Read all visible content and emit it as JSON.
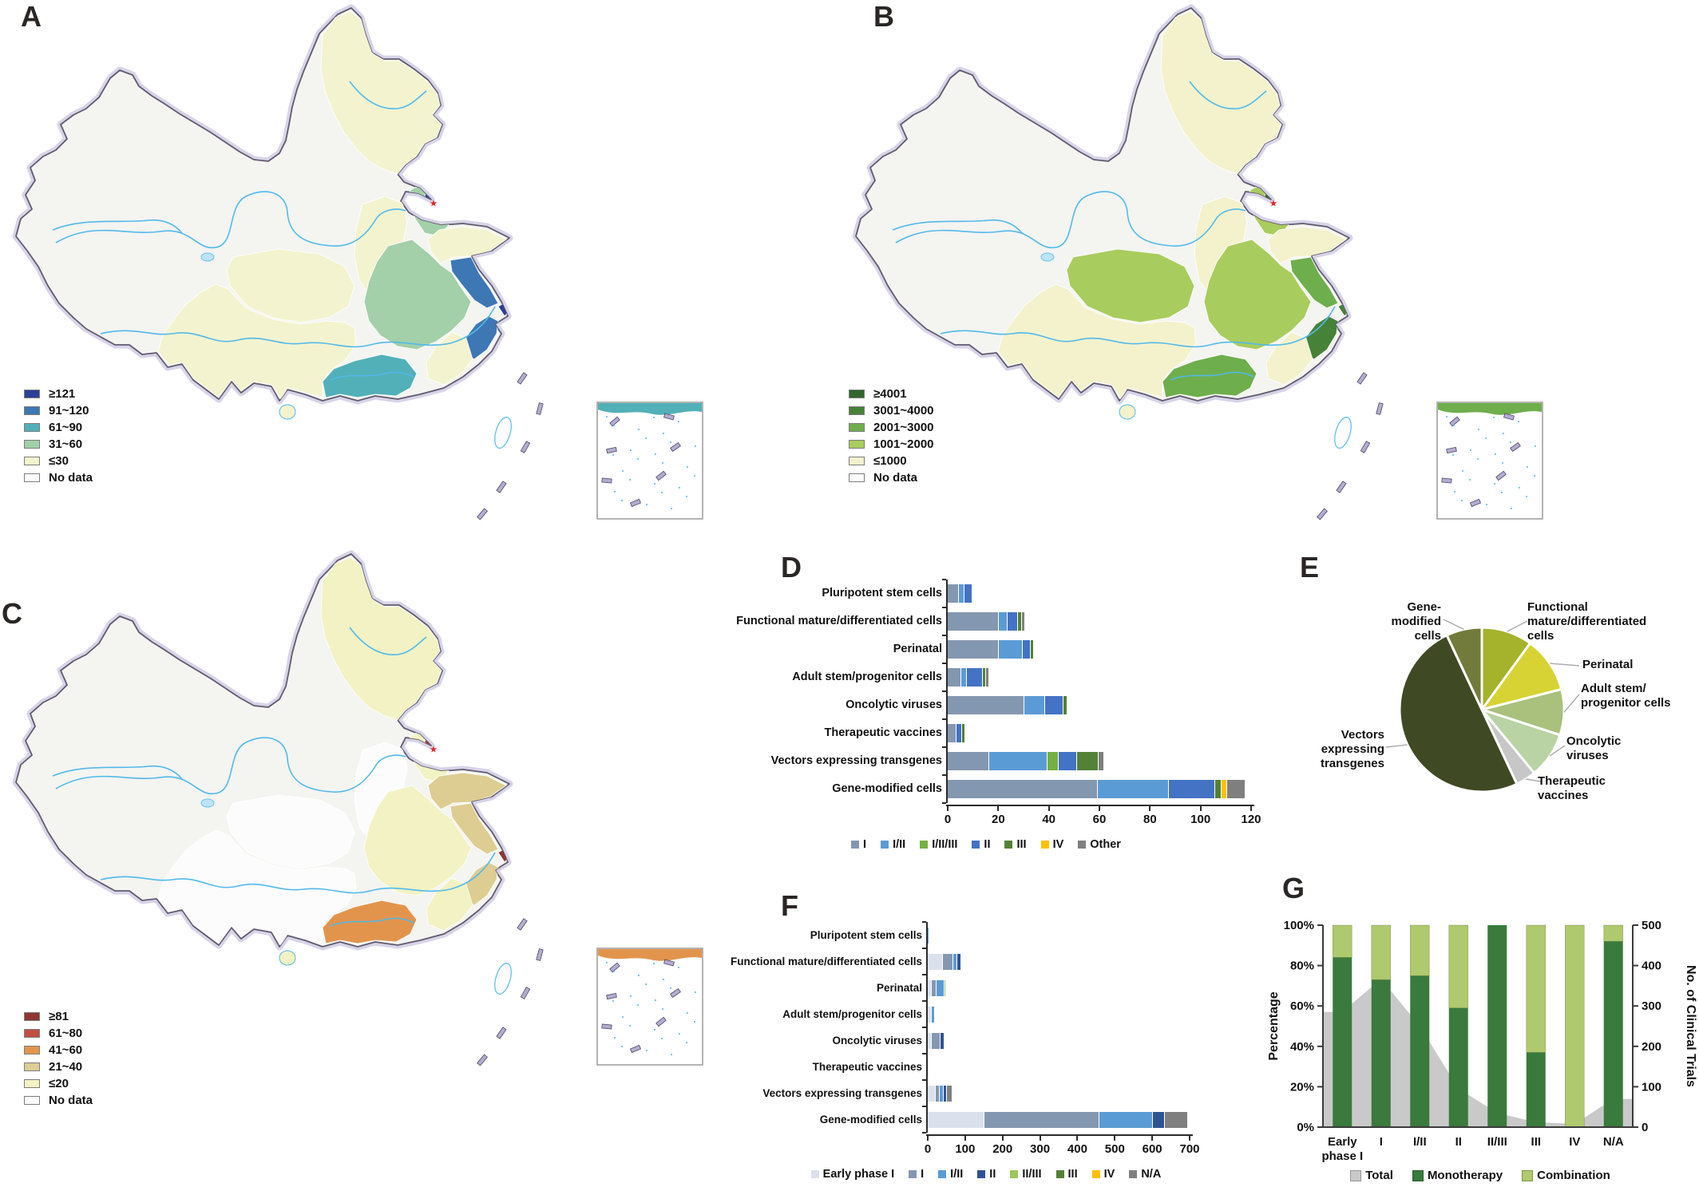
{
  "figure": {
    "panel_labels": {
      "a": "A",
      "b": "B",
      "c": "C",
      "d": "D",
      "e": "E",
      "f": "F",
      "g": "G"
    }
  },
  "maps": {
    "a": {
      "panel": "A",
      "legend": [
        {
          "label": "≥121",
          "color": "#2a3f97"
        },
        {
          "label": "91~120",
          "color": "#3d77b4"
        },
        {
          "label": "61~90",
          "color": "#52b0b8"
        },
        {
          "label": "31~60",
          "color": "#a3cfa9"
        },
        {
          "label": "≤30",
          "color": "#f3f3cf"
        },
        {
          "label": "No data",
          "color": "#fcfcfc"
        }
      ],
      "regions": {
        "beijing": 0,
        "shanghai": 0,
        "jiangsu": 1,
        "zhejiang": 1,
        "guangdong": 2,
        "inset_coast": 2,
        "hebei": 3,
        "central": 3,
        "northeast": 4,
        "shanxi": 4,
        "shandong": 4,
        "fujian": 4,
        "sichuan": 4,
        "southwest": 4,
        "hainan": 4
      }
    },
    "b": {
      "panel": "B",
      "legend": [
        {
          "label": "≥4001",
          "color": "#30662e"
        },
        {
          "label": "3001~4000",
          "color": "#468238"
        },
        {
          "label": "2001~3000",
          "color": "#6fae4c"
        },
        {
          "label": "1001~2000",
          "color": "#a9cc5e"
        },
        {
          "label": "≤1000",
          "color": "#f3f2cd"
        },
        {
          "label": "No data",
          "color": "#fcfcfc"
        }
      ],
      "regions": {
        "beijing": 0,
        "zhejiang": 1,
        "shanghai": 1,
        "jiangsu": 2,
        "guangdong": 2,
        "inset_coast": 2,
        "hebei": 3,
        "central": 3,
        "sichuan": 3,
        "northeast": 4,
        "shanxi": 4,
        "shandong": 4,
        "fujian": 4,
        "southwest": 4,
        "hainan": 4
      }
    },
    "c": {
      "panel": "C",
      "legend": [
        {
          "label": "≥81",
          "color": "#8e3732"
        },
        {
          "label": "61~80",
          "color": "#c04f45"
        },
        {
          "label": "41~60",
          "color": "#e2944d"
        },
        {
          "label": "21~40",
          "color": "#ddcd92"
        },
        {
          "label": "≤20",
          "color": "#f2f2c4"
        },
        {
          "label": "No data",
          "color": "#fcfcfc"
        }
      ],
      "regions": {
        "beijing": 0,
        "shanghai": 0,
        "guangdong": 2,
        "inset_coast": 2,
        "jiangsu": 3,
        "zhejiang": 3,
        "shandong": 3,
        "hebei": 4,
        "central": 4,
        "fujian": 4,
        "northeast": 4,
        "hainan": 4,
        "shanxi": 5,
        "sichuan": 5,
        "southwest": 5
      }
    }
  },
  "chart_data": [
    {
      "id": "D",
      "type": "bar",
      "orientation": "horizontal",
      "stacked": true,
      "categories": [
        "Pluripotent stem cells",
        "Functional mature/differentiated cells",
        "Perinatal",
        "Adult stem/progenitor cells",
        "Oncolytic viruses",
        "Therapeutic vaccines",
        "Vectors expressing transgenes",
        "Gene-modified cells"
      ],
      "series": [
        {
          "name": "I",
          "color": "#8497b0",
          "values": [
            4,
            20,
            20,
            5,
            30,
            3,
            16,
            59
          ]
        },
        {
          "name": "I/II",
          "color": "#5b9bd5",
          "values": [
            2,
            3,
            9,
            2,
            8,
            0,
            23,
            28
          ]
        },
        {
          "name": "I/II/III",
          "color": "#76b043",
          "values": [
            0,
            0,
            0,
            0,
            0,
            0,
            4,
            0
          ]
        },
        {
          "name": "II",
          "color": "#4472c4",
          "values": [
            3,
            4,
            3,
            6,
            7,
            2,
            7,
            18
          ]
        },
        {
          "name": "III",
          "color": "#538135",
          "values": [
            0,
            1,
            1,
            1,
            1,
            1,
            8,
            2
          ]
        },
        {
          "name": "IV",
          "color": "#ffc000",
          "values": [
            0,
            0,
            0,
            0,
            0,
            0,
            0,
            2
          ]
        },
        {
          "name": "Other",
          "color": "#7f7f7f",
          "values": [
            0,
            1,
            0,
            1,
            0,
            0,
            2,
            7
          ]
        }
      ],
      "xlim": [
        0,
        120
      ],
      "xstep": 20
    },
    {
      "id": "E",
      "type": "pie",
      "slices": [
        {
          "label": "Functional mature/differentiated cells",
          "value": 10,
          "color": "#a4b22c",
          "display_lines": [
            "Functional",
            "mature/differentiated",
            "cells"
          ]
        },
        {
          "label": "Perinatal",
          "value": 11,
          "color": "#d7d334",
          "display_lines": [
            "Perinatal"
          ]
        },
        {
          "label": "Adult stem/progenitor cells",
          "value": 9,
          "color": "#a9c17d",
          "display_lines": [
            "Adult stem/",
            "progenitor cells"
          ]
        },
        {
          "label": "Oncolytic viruses",
          "value": 9,
          "color": "#b9d3a4",
          "display_lines": [
            "Oncolytic",
            "viruses"
          ]
        },
        {
          "label": "Therapeutic vaccines",
          "value": 4,
          "color": "#c7c7c7",
          "display_lines": [
            "Therapeutic",
            "vaccines"
          ]
        },
        {
          "label": "Vectors expressing transgenes",
          "value": 50,
          "color": "#3f4a25",
          "display_lines": [
            "Vectors",
            "expressing",
            "transgenes"
          ]
        },
        {
          "label": "Gene-modified cells",
          "value": 7,
          "color": "#737b3c",
          "display_lines": [
            "Gene-",
            "modified",
            "cells"
          ]
        }
      ]
    },
    {
      "id": "F",
      "type": "bar",
      "orientation": "horizontal",
      "stacked": true,
      "categories": [
        "Pluripotent stem cells",
        "Functional mature/differentiated cells",
        "Perinatal",
        "Adult stem/progenitor cells",
        "Oncolytic viruses",
        "Therapeutic vaccines",
        "Vectors expressing transgenes",
        "Gene-modified cells"
      ],
      "series": [
        {
          "name": "Early phase I",
          "color": "#dbe1ec",
          "values": [
            0,
            38,
            8,
            9,
            8,
            3,
            20,
            150
          ]
        },
        {
          "name": "I",
          "color": "#8497b0",
          "values": [
            0,
            25,
            12,
            0,
            22,
            0,
            8,
            305
          ]
        },
        {
          "name": "I/II",
          "color": "#5b9bd5",
          "values": [
            3,
            10,
            19,
            7,
            0,
            0,
            8,
            140
          ]
        },
        {
          "name": "II",
          "color": "#2e5395",
          "values": [
            0,
            8,
            0,
            0,
            8,
            0,
            6,
            30
          ]
        },
        {
          "name": "II/III",
          "color": "#9cc65a",
          "values": [
            0,
            0,
            2,
            0,
            0,
            0,
            0,
            0
          ]
        },
        {
          "name": "III",
          "color": "#538135",
          "values": [
            0,
            0,
            0,
            0,
            0,
            0,
            0,
            0
          ]
        },
        {
          "name": "IV",
          "color": "#ffc000",
          "values": [
            0,
            0,
            0,
            0,
            0,
            0,
            0,
            0
          ]
        },
        {
          "name": "N/A",
          "color": "#7f7f7f",
          "values": [
            0,
            0,
            0,
            0,
            0,
            0,
            14,
            60
          ]
        }
      ],
      "xlim": [
        0,
        700
      ],
      "xstep": 100
    },
    {
      "id": "G",
      "type": "combo",
      "categories": [
        "Early phase I",
        "I",
        "I/II",
        "II",
        "II/III",
        "III",
        "IV",
        "N/A"
      ],
      "categories_display": [
        [
          "Early",
          "phase I"
        ],
        [
          "I"
        ],
        [
          "I/II"
        ],
        [
          "II"
        ],
        [
          "II/III"
        ],
        [
          "III"
        ],
        [
          "IV"
        ],
        [
          "N/A"
        ]
      ],
      "series": [
        {
          "name": "Total",
          "chart": "area",
          "axis": "right",
          "color": "#c9c9c9",
          "values": [
            285,
            367,
            250,
            95,
            35,
            12,
            8,
            70
          ]
        },
        {
          "name": "Monotherapy",
          "chart": "bar",
          "axis": "left",
          "color": "#3a7a3d",
          "values": [
            84,
            73,
            75,
            59,
            100,
            37,
            0,
            92
          ]
        },
        {
          "name": "Combination",
          "chart": "bar",
          "axis": "left",
          "color": "#aec96e",
          "values": [
            16,
            27,
            25,
            41,
            0,
            63,
            100,
            8
          ]
        }
      ],
      "left_axis": {
        "title": "Percentage",
        "max": 100,
        "step": 20,
        "suffix": "%"
      },
      "right_axis": {
        "title": "No. of Clinical Trials",
        "max": 500,
        "step": 100
      }
    }
  ]
}
